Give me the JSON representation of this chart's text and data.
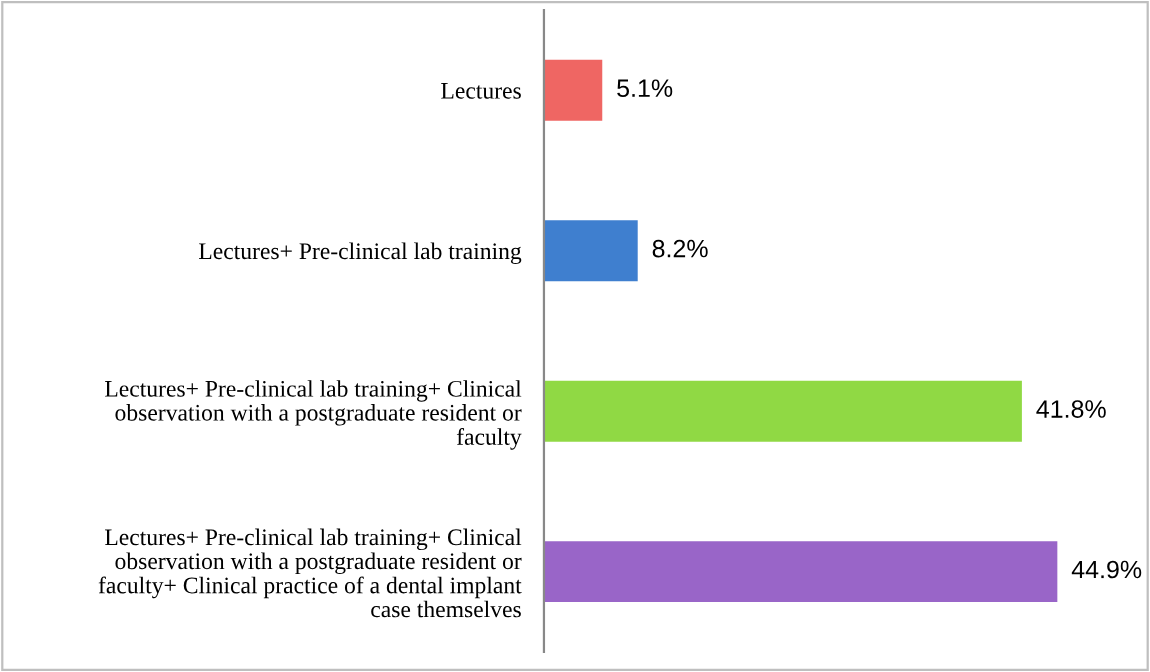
{
  "chart_data": {
    "type": "bar",
    "orientation": "horizontal",
    "categories": [
      "Lectures",
      "Lectures+ Pre-clinical lab training",
      "Lectures+ Pre-clinical lab training+ Clinical\nobservation with a postgraduate resident or\nfaculty",
      "Lectures+ Pre-clinical lab training+ Clinical\nobservation with a postgraduate resident or\nfaculty+ Clinical practice of a dental implant\ncase themselves"
    ],
    "values": [
      5.1,
      8.2,
      41.8,
      44.9
    ],
    "value_labels": [
      "5.1%",
      "8.2%",
      "41.8%",
      "44.9%"
    ],
    "colors": [
      "#ef6663",
      "#3f7fcf",
      "#90d944",
      "#9965c8"
    ],
    "tick_labels": "y",
    "grid": false,
    "legend": false
  }
}
